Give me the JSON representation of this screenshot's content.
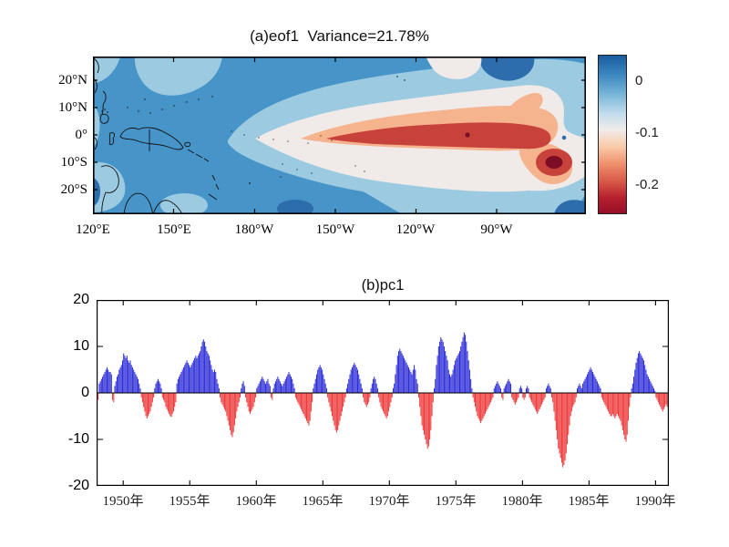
{
  "chart_data": [
    {
      "type": "filled_contour_map",
      "title": "(a)eof1  Variance=21.78%",
      "variance_percent": 21.78,
      "lon_tick_labels": [
        "120°E",
        "150°E",
        "180°W",
        "150°W",
        "120°W",
        "90°W"
      ],
      "lat_tick_labels": [
        "20°N",
        "10°N",
        "0°",
        "10°S",
        "20°S"
      ],
      "colorbar": {
        "tick_labels": [
          "0",
          "-0.1",
          "-0.2"
        ],
        "gradient": [
          "#1a5c9e 0%",
          "#3c87c0 12%",
          "#7ab8d9 25%",
          "#c3dded 37%",
          "#f0ecea 47%",
          "#f9c9a8 58%",
          "#f09470 68%",
          "#d75745 80%",
          "#b72030 90%",
          "#970f26 100%"
        ]
      },
      "palette": {
        "dark_blue": "#2d6dab",
        "medium_blue": "#4694c8",
        "light_blue": "#9ccae1",
        "cream": "#f0ebe8",
        "salmon": "#f5b48e",
        "red": "#c8423c",
        "dark_red": "#7c0d26",
        "land": "#111111",
        "frame": "#000000"
      },
      "bands": [
        {
          "level": "> 0",
          "color": "#2d6dab"
        },
        {
          "level": "-0.05 to 0",
          "color": "#4694c8"
        },
        {
          "level": "-0.075 to -0.05",
          "color": "#9ccae1"
        },
        {
          "level": "-0.125 to -0.075",
          "color": "#f0ebe8"
        },
        {
          "level": "-0.15 to -0.125",
          "color": "#f5b48e"
        },
        {
          "level": "-0.225 to -0.15",
          "color": "#c8423c"
        },
        {
          "level": "< -0.225",
          "color": "#7c0d26"
        }
      ],
      "notable_features": "Negative loading tongue along the equatorial central-eastern Pacific; strongest center (< -0.225) near 95W,8S; small closed minimum near 118W,0; positive (blue) loadings over the western Pacific warm pool."
    },
    {
      "type": "bar",
      "title": "(b)pc1",
      "x_start_year": 1948,
      "x_end_year": 1991,
      "frequency": "monthly",
      "ylim": [
        -20,
        20
      ],
      "ytick_labels": [
        "20",
        "10",
        "0",
        "-10",
        "-20"
      ],
      "xtick_labels": [
        "1950年",
        "1955年",
        "1960年",
        "1965年",
        "1970年",
        "1975年",
        "1980年",
        "1985年",
        "1990年"
      ],
      "positive_color": "#2b2bd8",
      "negative_color": "#ee3636",
      "zero_line_color": "#000000",
      "values": [
        1.5,
        -1.5,
        2,
        2.5,
        3,
        3.5,
        4,
        4.5,
        5,
        5.5,
        5,
        4.5,
        4.5,
        4,
        -1.5,
        -2,
        1.5,
        2.5,
        3.5,
        4,
        5,
        5.5,
        6,
        7,
        8.5,
        8,
        7.5,
        8,
        7,
        6.5,
        7,
        6,
        5.5,
        5,
        4.5,
        4,
        3.5,
        3,
        2,
        1,
        -1,
        -2,
        -3,
        -4,
        -5,
        -5.5,
        -5,
        -4.5,
        -4,
        -3,
        -2,
        -1,
        1,
        2,
        2.5,
        3,
        2.5,
        2,
        1,
        -1,
        -1.5,
        -2,
        -3,
        -3.5,
        -4,
        -4.5,
        -5,
        -5.2,
        -4.5,
        -4,
        -3,
        -2,
        2,
        3,
        3.5,
        4,
        4.5,
        5,
        5.5,
        6,
        6.5,
        7,
        6.5,
        6,
        5.5,
        6,
        6.5,
        7,
        7.5,
        8,
        7.5,
        8,
        8.5,
        9,
        10,
        11,
        11.5,
        11,
        10,
        9,
        8.5,
        8,
        7,
        6,
        5,
        4.5,
        5,
        4.5,
        3,
        2,
        1,
        -1,
        -2,
        -2.5,
        -3,
        -3.5,
        -4,
        -5,
        -6,
        -7,
        -8,
        -9,
        -9.5,
        -8.5,
        -7,
        -5.5,
        -4,
        -3,
        -2,
        -1,
        1,
        2,
        2.5,
        1.5,
        -1,
        -2,
        -3,
        -4,
        -4.5,
        -4,
        -3.5,
        -3,
        -2,
        -1,
        1,
        1.5,
        2,
        2.5,
        3,
        3.5,
        3,
        2.5,
        2,
        2.5,
        3,
        2,
        1.5,
        -1,
        -1.5,
        1,
        2,
        2.5,
        3,
        3.5,
        3,
        2.5,
        2,
        1.5,
        2,
        2.5,
        3,
        3.5,
        4,
        4.5,
        4,
        3.5,
        3,
        2,
        1,
        -1,
        -1.5,
        -2,
        -2.5,
        -3,
        -3.5,
        -4,
        -4.5,
        -5,
        -5.5,
        -6,
        -6.5,
        -7,
        -6,
        -4,
        -2,
        1,
        2,
        3,
        4,
        5,
        5.5,
        6,
        5.5,
        5,
        4,
        3,
        2,
        1,
        -1,
        -2,
        -3,
        -4,
        -5,
        -6,
        -7,
        -8,
        -8.5,
        -8,
        -7,
        -6,
        -5,
        -4,
        -3,
        -2,
        -1,
        1,
        2,
        3,
        4,
        5,
        5.5,
        6,
        6.5,
        6,
        5.5,
        5,
        4,
        3,
        2,
        1,
        -1,
        -2,
        -2.5,
        -3,
        -2.5,
        -2,
        -1,
        1,
        2,
        3,
        3.5,
        3,
        2,
        1,
        -1,
        -2,
        -3,
        -3.5,
        -4,
        -4.5,
        -5,
        -5.5,
        -5,
        -4,
        -3,
        -2,
        -1,
        1,
        2,
        4,
        6,
        8,
        9,
        9.5,
        9,
        8.5,
        8,
        7.5,
        7,
        6.5,
        6,
        5.5,
        5,
        4.5,
        4,
        5,
        6,
        5,
        3,
        2,
        -1,
        -3,
        -5,
        -7,
        -8,
        -9,
        -10,
        -11,
        -12,
        -11.5,
        -10,
        -8,
        -5,
        -2,
        1,
        3,
        6,
        8,
        10,
        11,
        12,
        11.5,
        11,
        10,
        9,
        8,
        7,
        5,
        4,
        3.5,
        4,
        5,
        6,
        7,
        7.5,
        8,
        8.5,
        9,
        10,
        11,
        12,
        13,
        12.5,
        11,
        9,
        7,
        5,
        3,
        1,
        -1,
        -2,
        -3,
        -4,
        -5,
        -5.5,
        -6,
        -6.5,
        -6,
        -5.5,
        -5,
        -4.5,
        -4,
        -3.5,
        -3,
        -2.5,
        -2,
        -1.5,
        -1,
        1,
        1.5,
        2,
        2.5,
        2,
        1.5,
        1,
        -1,
        -1.5,
        1,
        1.5,
        2,
        2.5,
        3,
        2.5,
        2,
        -1,
        -1.5,
        -2,
        -2.5,
        -2,
        -1.5,
        -1,
        1,
        1.5,
        1,
        -1,
        -1.5,
        -1,
        1,
        1.5,
        1,
        -1,
        -1.5,
        -2,
        -2.5,
        -3,
        -3.5,
        -4,
        -4.5,
        -4,
        -3.5,
        -3,
        -2.5,
        -2,
        -1.5,
        -1,
        1,
        1.5,
        2,
        1.5,
        1,
        -1,
        -2,
        -4,
        -6,
        -8,
        -10,
        -12,
        -13,
        -14,
        -15,
        -16,
        -15.5,
        -14.5,
        -13,
        -11,
        -9,
        -7,
        -5,
        -4,
        -3,
        -2.5,
        -2,
        -1,
        1,
        1.5,
        2,
        1.5,
        1,
        2,
        2.5,
        3,
        3.5,
        4,
        4.5,
        5,
        5.5,
        5,
        4.5,
        4,
        3.5,
        3,
        2.5,
        2,
        1.5,
        1,
        -1,
        -1.5,
        -2,
        -2.5,
        -3,
        -3.5,
        -4,
        -4.5,
        -5,
        -5,
        -4.5,
        -5,
        -5.5,
        -5,
        -4.5,
        -5,
        -5.5,
        -6,
        -7,
        -8,
        -9,
        -10,
        -10.5,
        -9,
        -6,
        -3,
        -1,
        1,
        2,
        3.5,
        5,
        6.5,
        7.5,
        8.5,
        9,
        8.5,
        8,
        7.5,
        7,
        6,
        5,
        4,
        3.5,
        3,
        2.5,
        2,
        1.5,
        1,
        0.5,
        -1,
        -1.5,
        -2,
        -2.5,
        -3,
        -3.5,
        -4,
        -3.5,
        -3,
        -2.5,
        -3,
        -2.5
      ]
    }
  ]
}
